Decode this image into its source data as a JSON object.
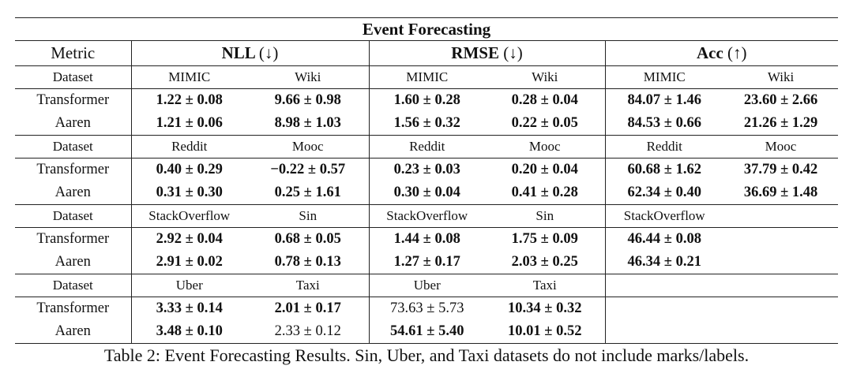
{
  "title": "Event Forecasting",
  "metric_header": "Metric",
  "metric_groups": [
    {
      "name": "NLL",
      "arrow": "(↓)"
    },
    {
      "name": "RMSE",
      "arrow": "(↓)"
    },
    {
      "name": "Acc",
      "arrow": "(↑)"
    }
  ],
  "dataset_label": "Dataset",
  "blocks": [
    {
      "datasets": [
        "MIMIC",
        "Wiki",
        "MIMIC",
        "Wiki",
        "MIMIC",
        "Wiki"
      ],
      "rows": [
        {
          "label": "Transformer",
          "cells": [
            {
              "text": "1.22 ± 0.08",
              "bold": true
            },
            {
              "text": "9.66 ± 0.98",
              "bold": true
            },
            {
              "text": "1.60 ± 0.28",
              "bold": true
            },
            {
              "text": "0.28 ± 0.04",
              "bold": true
            },
            {
              "text": "84.07 ± 1.46",
              "bold": true
            },
            {
              "text": "23.60 ± 2.66",
              "bold": true
            }
          ]
        },
        {
          "label": "Aaren",
          "cells": [
            {
              "text": "1.21 ± 0.06",
              "bold": true
            },
            {
              "text": "8.98 ± 1.03",
              "bold": true
            },
            {
              "text": "1.56 ± 0.32",
              "bold": true
            },
            {
              "text": "0.22 ± 0.05",
              "bold": true
            },
            {
              "text": "84.53 ± 0.66",
              "bold": true
            },
            {
              "text": "21.26 ± 1.29",
              "bold": true
            }
          ]
        }
      ]
    },
    {
      "datasets": [
        "Reddit",
        "Mooc",
        "Reddit",
        "Mooc",
        "Reddit",
        "Mooc"
      ],
      "rows": [
        {
          "label": "Transformer",
          "cells": [
            {
              "text": "0.40 ± 0.29",
              "bold": true
            },
            {
              "text": "−0.22 ± 0.57",
              "bold": true
            },
            {
              "text": "0.23 ± 0.03",
              "bold": true
            },
            {
              "text": "0.20 ± 0.04",
              "bold": true
            },
            {
              "text": "60.68 ± 1.62",
              "bold": true
            },
            {
              "text": "37.79 ± 0.42",
              "bold": true
            }
          ]
        },
        {
          "label": "Aaren",
          "cells": [
            {
              "text": "0.31 ± 0.30",
              "bold": true
            },
            {
              "text": "0.25 ± 1.61",
              "bold": true
            },
            {
              "text": "0.30 ± 0.04",
              "bold": true
            },
            {
              "text": "0.41 ± 0.28",
              "bold": true
            },
            {
              "text": "62.34 ± 0.40",
              "bold": true
            },
            {
              "text": "36.69 ± 1.48",
              "bold": true
            }
          ]
        }
      ]
    },
    {
      "datasets": [
        "StackOverflow",
        "Sin",
        "StackOverflow",
        "Sin",
        "StackOverflow",
        ""
      ],
      "rows": [
        {
          "label": "Transformer",
          "cells": [
            {
              "text": "2.92 ± 0.04",
              "bold": true
            },
            {
              "text": "0.68 ± 0.05",
              "bold": true
            },
            {
              "text": "1.44 ± 0.08",
              "bold": true
            },
            {
              "text": "1.75 ± 0.09",
              "bold": true
            },
            {
              "text": "46.44 ± 0.08",
              "bold": true
            },
            {
              "text": "",
              "bold": false
            }
          ]
        },
        {
          "label": "Aaren",
          "cells": [
            {
              "text": "2.91 ± 0.02",
              "bold": true
            },
            {
              "text": "0.78 ± 0.13",
              "bold": true
            },
            {
              "text": "1.27 ± 0.17",
              "bold": true
            },
            {
              "text": "2.03 ± 0.25",
              "bold": true
            },
            {
              "text": "46.34 ± 0.21",
              "bold": true
            },
            {
              "text": "",
              "bold": false
            }
          ]
        }
      ]
    },
    {
      "datasets": [
        "Uber",
        "Taxi",
        "Uber",
        "Taxi",
        "",
        ""
      ],
      "rows": [
        {
          "label": "Transformer",
          "cells": [
            {
              "text": "3.33 ± 0.14",
              "bold": true
            },
            {
              "text": "2.01 ± 0.17",
              "bold": true
            },
            {
              "text": "73.63 ± 5.73",
              "bold": false
            },
            {
              "text": "10.34 ± 0.32",
              "bold": true
            },
            {
              "text": "",
              "bold": false
            },
            {
              "text": "",
              "bold": false
            }
          ]
        },
        {
          "label": "Aaren",
          "cells": [
            {
              "text": "3.48 ± 0.10",
              "bold": true
            },
            {
              "text": "2.33 ± 0.12",
              "bold": false
            },
            {
              "text": "54.61 ± 5.40",
              "bold": true
            },
            {
              "text": "10.01 ± 0.52",
              "bold": true
            },
            {
              "text": "",
              "bold": false
            },
            {
              "text": "",
              "bold": false
            }
          ]
        }
      ]
    }
  ],
  "caption": "Table 2: Event Forecasting Results. Sin, Uber, and Taxi datasets do not include marks/labels."
}
